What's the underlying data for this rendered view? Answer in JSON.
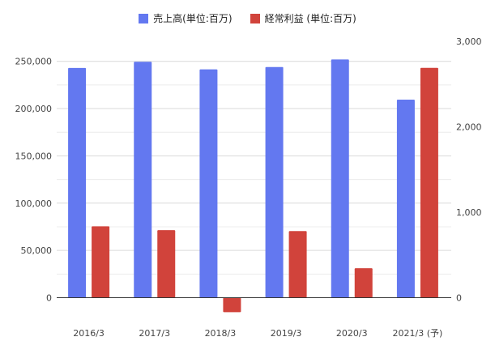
{
  "chart_data": {
    "type": "bar",
    "categories": [
      "2016/3",
      "2017/3",
      "2018/3",
      "2019/3",
      "2020/3",
      "2021/3 (予)"
    ],
    "series": [
      {
        "name": "売上高(単位:百万)",
        "axis": "left",
        "color": "#6378f0",
        "values": [
          243000,
          249500,
          241500,
          244000,
          252000,
          209500
        ]
      },
      {
        "name": "経常利益 (単位:百万)",
        "axis": "right",
        "color": "#d1433b",
        "values": [
          835,
          790,
          -170,
          780,
          345,
          2690
        ]
      }
    ],
    "y_left": {
      "ylim": [
        -35000,
        270000
      ],
      "ticks": [
        0,
        50000,
        100000,
        150000,
        200000,
        250000
      ],
      "tick_labels": [
        "0",
        "50,000",
        "100,000",
        "150,000",
        "200,000",
        "250,000"
      ]
    },
    "y_right": {
      "ylim": [
        -350,
        2850
      ],
      "ticks": [
        0,
        1000,
        2000,
        3000
      ],
      "tick_labels": [
        "0",
        "1,000",
        "2,000",
        "3,000"
      ]
    },
    "grid": true,
    "legend_position": "top-center",
    "title": "",
    "xlabel": "",
    "ylabel": ""
  }
}
